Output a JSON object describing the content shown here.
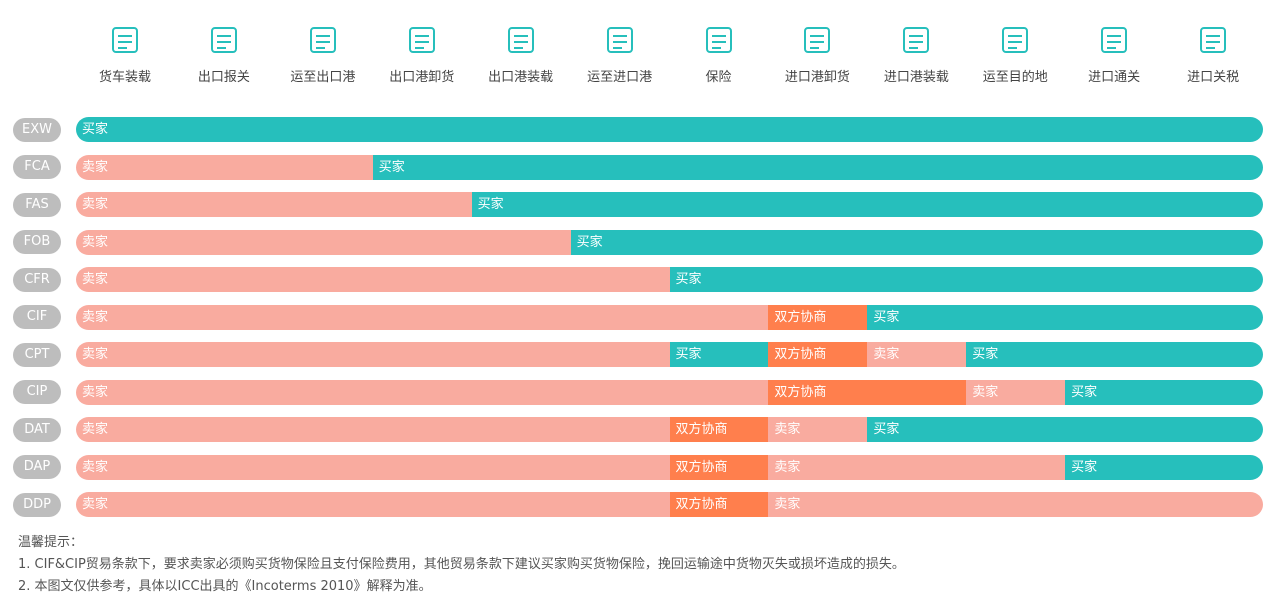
{
  "steps": [
    "货车装载",
    "出口报关",
    "运至出口港",
    "出口港卸货",
    "出口港装载",
    "运至进口港",
    "保险",
    "进口港卸货",
    "进口港装载",
    "运至目的地",
    "进口通关",
    "进口关税"
  ],
  "rows": [
    {
      "term": "EXW",
      "segments": [
        {
          "label": "买家",
          "span": 12,
          "color": "#26bfbc"
        }
      ]
    },
    {
      "term": "FCA",
      "segments": [
        {
          "label": "卖家",
          "span": 3,
          "color": "#f9ab9f"
        },
        {
          "label": "买家",
          "span": 9,
          "color": "#26bfbc"
        }
      ]
    },
    {
      "term": "FAS",
      "segments": [
        {
          "label": "卖家",
          "span": 4,
          "color": "#f9ab9f"
        },
        {
          "label": "买家",
          "span": 8,
          "color": "#26bfbc"
        }
      ]
    },
    {
      "term": "FOB",
      "segments": [
        {
          "label": "卖家",
          "span": 5,
          "color": "#f9ab9f"
        },
        {
          "label": "买家",
          "span": 7,
          "color": "#26bfbc"
        }
      ]
    },
    {
      "term": "CFR",
      "segments": [
        {
          "label": "卖家",
          "span": 6,
          "color": "#f9ab9f"
        },
        {
          "label": "买家",
          "span": 6,
          "color": "#26bfbc"
        }
      ]
    },
    {
      "term": "CIF",
      "segments": [
        {
          "label": "卖家",
          "span": 7,
          "color": "#f9ab9f"
        },
        {
          "label": "双方协商",
          "span": 1,
          "color": "#ff7f4d"
        },
        {
          "label": "买家",
          "span": 4,
          "color": "#26bfbc"
        }
      ]
    },
    {
      "term": "CPT",
      "segments": [
        {
          "label": "卖家",
          "span": 6,
          "color": "#f9ab9f"
        },
        {
          "label": "买家",
          "span": 1,
          "color": "#26bfbc"
        },
        {
          "label": "双方协商",
          "span": 1,
          "color": "#ff7f4d"
        },
        {
          "label": "卖家",
          "span": 1,
          "color": "#f9ab9f"
        },
        {
          "label": "买家",
          "span": 3,
          "color": "#26bfbc"
        }
      ]
    },
    {
      "term": "CIP",
      "segments": [
        {
          "label": "卖家",
          "span": 7,
          "color": "#f9ab9f"
        },
        {
          "label": "双方协商",
          "span": 2,
          "color": "#ff7f4d"
        },
        {
          "label": "卖家",
          "span": 1,
          "color": "#f9ab9f"
        },
        {
          "label": "买家",
          "span": 2,
          "color": "#26bfbc"
        }
      ]
    },
    {
      "term": "DAT",
      "segments": [
        {
          "label": "卖家",
          "span": 6,
          "color": "#f9ab9f"
        },
        {
          "label": "双方协商",
          "span": 1,
          "color": "#ff7f4d"
        },
        {
          "label": "卖家",
          "span": 1,
          "color": "#f9ab9f"
        },
        {
          "label": "买家",
          "span": 4,
          "color": "#26bfbc"
        }
      ]
    },
    {
      "term": "DAP",
      "segments": [
        {
          "label": "卖家",
          "span": 6,
          "color": "#f9ab9f"
        },
        {
          "label": "双方协商",
          "span": 1,
          "color": "#ff7f4d"
        },
        {
          "label": "卖家",
          "span": 3,
          "color": "#f9ab9f"
        },
        {
          "label": "买家",
          "span": 2,
          "color": "#26bfbc"
        }
      ]
    },
    {
      "term": "DDP",
      "segments": [
        {
          "label": "卖家",
          "span": 6,
          "color": "#f9ab9f"
        },
        {
          "label": "双方协商",
          "span": 1,
          "color": "#ff7f4d"
        },
        {
          "label": "卖家",
          "span": 5,
          "color": "#f9ab9f"
        }
      ]
    }
  ],
  "notes": {
    "title": "温馨提示：",
    "lines": [
      "1. CIF&CIP贸易条款下，要求卖家必须购买货物保险且支付保险费用，其他贸易条款下建议买家购买货物保险，挽回运输途中货物灭失或损坏造成的损失。",
      "2. 本图文仅供参考，具体以ICC出具的《Incoterms 2010》解释为准。"
    ]
  }
}
